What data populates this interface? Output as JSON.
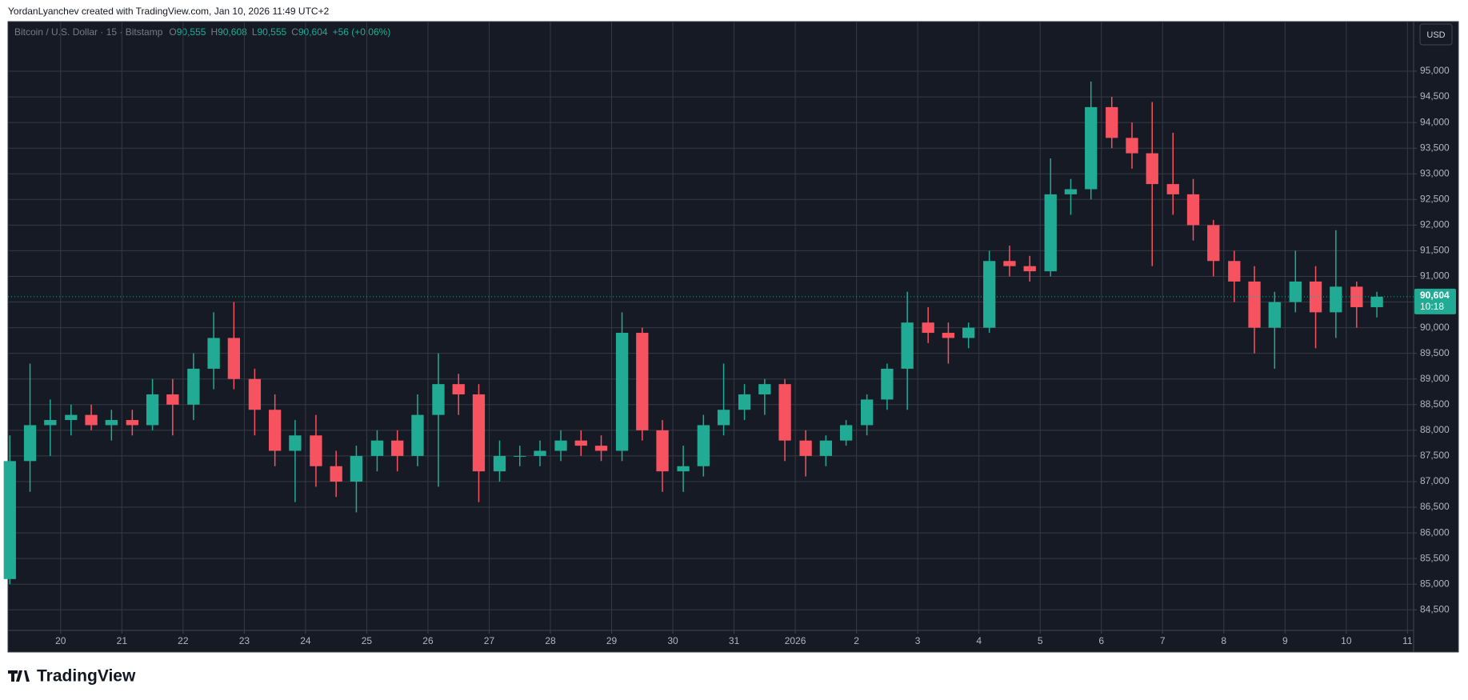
{
  "header": {
    "credit": "YordanLyanchev created with TradingView.com, Jan 10, 2026 11:49 UTC+2",
    "brand": "TradingView"
  },
  "chart_data": {
    "type": "candlestick",
    "legend": {
      "symbol": "Bitcoin / U.S. Dollar · 15 · Bitstamp",
      "labels": [
        "O",
        "H",
        "L",
        "C"
      ],
      "values": [
        "90,555",
        "90,608",
        "90,555",
        "90,604"
      ],
      "change": "+56 (+0.06%)"
    },
    "currency": "USD",
    "last_price": {
      "value": 90604,
      "label": "90,604"
    },
    "countdown": "10:18",
    "up_color": "#22ab94",
    "down_color": "#f7525f",
    "grid": true,
    "x": [
      -0.83,
      -0.5,
      -0.17,
      0.17,
      0.5,
      0.83,
      1.17,
      1.5,
      1.83,
      2.17,
      2.5,
      2.83,
      3.17,
      3.5,
      3.83,
      4.17,
      4.5,
      4.83,
      5.17,
      5.5,
      5.83,
      6.17,
      6.5,
      6.83,
      7.17,
      7.5,
      7.83,
      8.17,
      8.5,
      8.83,
      9.17,
      9.5,
      9.83,
      10.17,
      10.5,
      10.83,
      11.17,
      11.5,
      11.83,
      12.17,
      12.5,
      12.83,
      13.17,
      13.5,
      13.83,
      14.17,
      14.5,
      14.83,
      15.17,
      15.5,
      15.83,
      16.17,
      16.5,
      16.83,
      17.17,
      17.5,
      17.83,
      18.17,
      18.5,
      18.83,
      19.17,
      19.5,
      19.83,
      20.17,
      20.5,
      20.83,
      21.17,
      21.5
    ],
    "open": [
      85100,
      87400,
      88100,
      88200,
      88300,
      88100,
      88200,
      88100,
      88700,
      88500,
      89200,
      89800,
      89000,
      88400,
      87600,
      87900,
      87300,
      87000,
      87500,
      87800,
      87500,
      88300,
      88900,
      88700,
      87200,
      87500,
      87500,
      87600,
      87800,
      87700,
      87600,
      89900,
      88000,
      87200,
      87300,
      88100,
      88400,
      88700,
      88900,
      87800,
      87500,
      87800,
      88100,
      88600,
      89200,
      90100,
      89900,
      89800,
      90000,
      91300,
      91200,
      91100,
      92600,
      92700,
      94300,
      93700,
      93400,
      92800,
      92600,
      92000,
      91300,
      90900,
      90000,
      90500,
      90900,
      90300,
      90800,
      90400
    ],
    "high": [
      87900,
      89300,
      88600,
      88500,
      88500,
      88400,
      88400,
      89000,
      89000,
      89500,
      90300,
      90500,
      89200,
      88700,
      88200,
      88300,
      87600,
      87700,
      88000,
      88000,
      88700,
      89500,
      89100,
      88900,
      87800,
      87700,
      87800,
      88000,
      88000,
      87900,
      90300,
      90000,
      88200,
      87700,
      88300,
      89300,
      88900,
      89000,
      89000,
      88000,
      87900,
      88200,
      88700,
      89300,
      90700,
      90400,
      90100,
      90100,
      91500,
      91600,
      91400,
      93300,
      92900,
      94800,
      94500,
      94000,
      94400,
      93800,
      92900,
      92100,
      91500,
      91200,
      90700,
      91500,
      91200,
      91900,
      90900,
      90700
    ],
    "low": [
      85000,
      86800,
      87500,
      87900,
      88000,
      87800,
      87900,
      88000,
      87900,
      88200,
      88800,
      88800,
      87900,
      87300,
      86600,
      86900,
      86700,
      86400,
      87200,
      87200,
      87300,
      86900,
      88300,
      86600,
      87000,
      87300,
      87300,
      87400,
      87500,
      87400,
      87400,
      87800,
      86800,
      86800,
      87100,
      87900,
      88200,
      88300,
      87400,
      87100,
      87300,
      87700,
      87900,
      88400,
      88400,
      89700,
      89300,
      89600,
      89900,
      91000,
      90900,
      91000,
      92200,
      92500,
      93500,
      93100,
      91200,
      92200,
      91700,
      91000,
      90500,
      89500,
      89200,
      90300,
      89600,
      89800,
      90000,
      90200
    ],
    "close": [
      87400,
      88100,
      88200,
      88300,
      88100,
      88200,
      88100,
      88700,
      88500,
      89200,
      89800,
      89000,
      88400,
      87600,
      87900,
      87300,
      87000,
      87500,
      87800,
      87500,
      88300,
      88900,
      88700,
      87200,
      87500,
      87500,
      87600,
      87800,
      87700,
      87600,
      89900,
      88000,
      87200,
      87300,
      88100,
      88400,
      88700,
      88900,
      87800,
      87500,
      87800,
      88100,
      88600,
      89200,
      90100,
      89900,
      89800,
      90000,
      91300,
      91200,
      91100,
      92600,
      92700,
      94300,
      93700,
      93400,
      92800,
      92600,
      92000,
      91300,
      90900,
      90000,
      90500,
      90900,
      90300,
      90800,
      90400,
      90604
    ],
    "xlim": [
      -0.86,
      22.1
    ],
    "xticks": [
      {
        "value": 0,
        "label": "20"
      },
      {
        "value": 1,
        "label": "21"
      },
      {
        "value": 2,
        "label": "22"
      },
      {
        "value": 3,
        "label": "23"
      },
      {
        "value": 4,
        "label": "24"
      },
      {
        "value": 5,
        "label": "25"
      },
      {
        "value": 6,
        "label": "26"
      },
      {
        "value": 7,
        "label": "27"
      },
      {
        "value": 8,
        "label": "28"
      },
      {
        "value": 9,
        "label": "29"
      },
      {
        "value": 10,
        "label": "30"
      },
      {
        "value": 11,
        "label": "31"
      },
      {
        "value": 12,
        "label": "2026"
      },
      {
        "value": 13,
        "label": "2"
      },
      {
        "value": 14,
        "label": "3"
      },
      {
        "value": 15,
        "label": "4"
      },
      {
        "value": 16,
        "label": "5"
      },
      {
        "value": 17,
        "label": "6"
      },
      {
        "value": 18,
        "label": "7"
      },
      {
        "value": 19,
        "label": "8"
      },
      {
        "value": 20,
        "label": "9"
      },
      {
        "value": 21,
        "label": "10"
      },
      {
        "value": 22,
        "label": "11"
      }
    ],
    "ylim": [
      84099,
      95967
    ],
    "yticks": [
      {
        "value": 84500,
        "label": "84,500"
      },
      {
        "value": 85000,
        "label": "85,000"
      },
      {
        "value": 85500,
        "label": "85,500"
      },
      {
        "value": 86000,
        "label": "86,000"
      },
      {
        "value": 86500,
        "label": "86,500"
      },
      {
        "value": 87000,
        "label": "87,000"
      },
      {
        "value": 87500,
        "label": "87,500"
      },
      {
        "value": 88000,
        "label": "88,000"
      },
      {
        "value": 88500,
        "label": "88,500"
      },
      {
        "value": 89000,
        "label": "89,000"
      },
      {
        "value": 89500,
        "label": "89,500"
      },
      {
        "value": 90000,
        "label": "90,000"
      },
      {
        "value": 90500,
        "label": "90,500"
      },
      {
        "value": 91000,
        "label": "91,000"
      },
      {
        "value": 91500,
        "label": "91,500"
      },
      {
        "value": 92000,
        "label": "92,000"
      },
      {
        "value": 92500,
        "label": "92,500"
      },
      {
        "value": 93000,
        "label": "93,000"
      },
      {
        "value": 93500,
        "label": "93,500"
      },
      {
        "value": 94000,
        "label": "94,000"
      },
      {
        "value": 94500,
        "label": "94,500"
      },
      {
        "value": 95000,
        "label": "95,000"
      }
    ]
  }
}
